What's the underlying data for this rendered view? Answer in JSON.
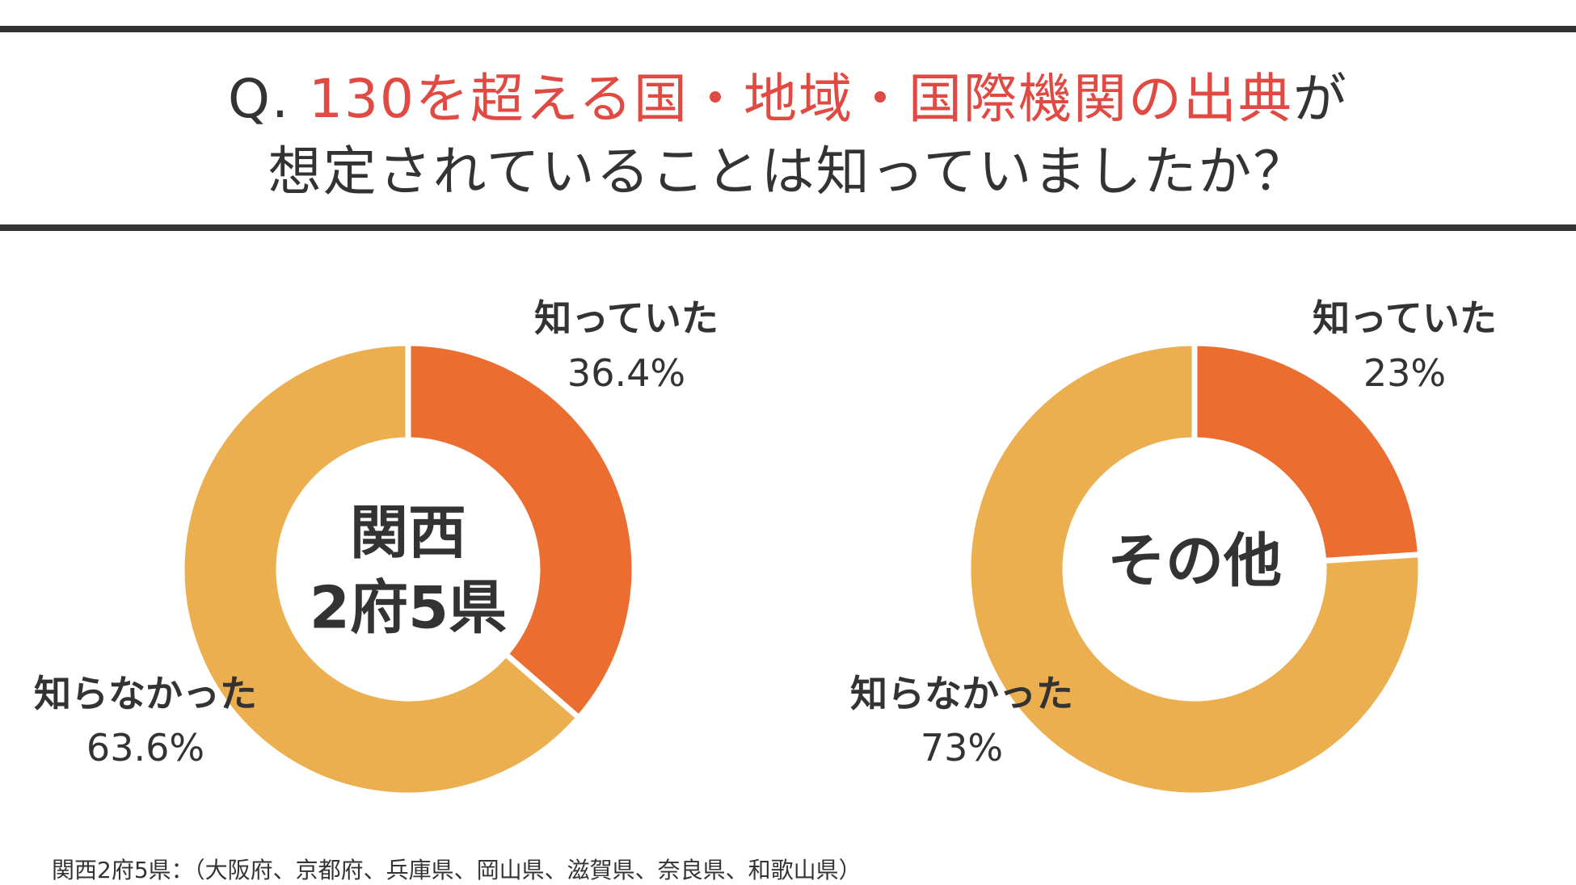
{
  "title": {
    "prefix": "Q. ",
    "highlight": "130を超える国・地域・国際機関の出典",
    "suffix": "が",
    "line2": "想定されていることは知っていましたか？"
  },
  "colors": {
    "known": "#eb6d30",
    "unknown": "#ebaf50",
    "highlight": "#e04a43",
    "text": "#333333"
  },
  "chart_data": [
    {
      "type": "pie",
      "title": "関西2府5県",
      "center_lines": [
        "関西",
        "2府5県"
      ],
      "series": [
        {
          "name": "知っていた",
          "value": 36.4,
          "label": "36.4%"
        },
        {
          "name": "知らなかった",
          "value": 63.6,
          "label": "63.6%"
        }
      ]
    },
    {
      "type": "pie",
      "title": "その他",
      "center_lines": [
        "その他"
      ],
      "series": [
        {
          "name": "知っていた",
          "value": 23,
          "label": "23%"
        },
        {
          "name": "知らなかった",
          "value": 73,
          "label": "73%"
        }
      ]
    }
  ],
  "footnote": "関西2府5県：（大阪府、京都府、兵庫県、岡山県、滋賀県、奈良県、和歌山県）"
}
